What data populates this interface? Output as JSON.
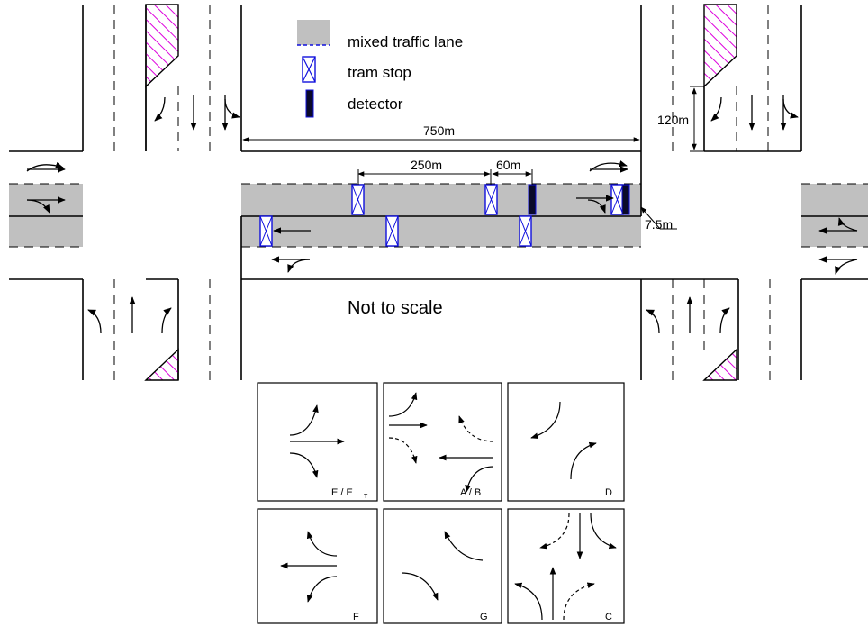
{
  "legend": {
    "mixed_lane": "mixed traffic lane",
    "tram_stop": "tram stop",
    "detector": "detector"
  },
  "dimensions": {
    "block_length": "750m",
    "stop_spacing": "250m",
    "detector_offset": "60m",
    "approach_length": "120m",
    "lane_width": "7.5m"
  },
  "note": "Not to scale",
  "phases": {
    "e": "E / E",
    "e_sub": "T",
    "ab": "A / B",
    "d": "D",
    "f": "F",
    "g": "G",
    "c": "C"
  },
  "colors": {
    "mixed_lane": "#c0c0c0",
    "tram_stop": "#1010dd",
    "detector": "#0a0a2a",
    "hatch": "#dd00dd"
  }
}
